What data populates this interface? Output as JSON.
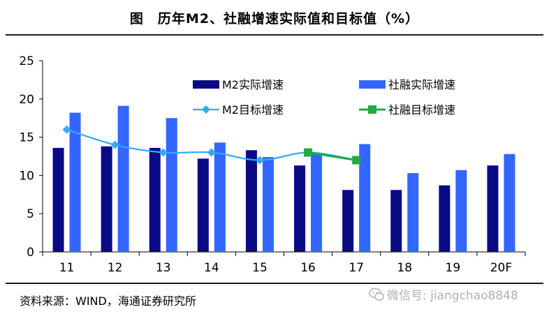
{
  "title": "图　历年M2、社融增速实际值和目标值（%）",
  "source": "资料来源：WIND，海通证券研究所",
  "watermark": "微信号: jiangchao8848",
  "colors": {
    "m2_actual": "#0a0a82",
    "sf_actual": "#3366ff",
    "m2_target": "#33aaff",
    "sf_target": "#22aa44"
  },
  "chart_data": {
    "type": "bar",
    "categories": [
      "11",
      "12",
      "13",
      "14",
      "15",
      "16",
      "17",
      "18",
      "19",
      "20F"
    ],
    "ylim": [
      0,
      25
    ],
    "yticks": [
      0,
      5,
      10,
      15,
      20,
      25
    ],
    "legend_position": "top-right",
    "series": [
      {
        "name": "M2实际增速",
        "kind": "bar",
        "colorKey": "m2_actual",
        "values": [
          13.6,
          13.8,
          13.6,
          12.2,
          13.3,
          11.3,
          8.1,
          8.1,
          8.7,
          11.3
        ]
      },
      {
        "name": "社融实际增速",
        "kind": "bar",
        "colorKey": "sf_actual",
        "values": [
          18.2,
          19.1,
          17.5,
          14.3,
          12.4,
          12.8,
          14.1,
          10.3,
          10.7,
          12.8
        ]
      },
      {
        "name": "M2目标增速",
        "kind": "line",
        "colorKey": "m2_target",
        "marker": "diamond",
        "values": [
          16,
          14,
          13,
          13,
          12,
          13,
          12,
          null,
          null,
          null
        ]
      },
      {
        "name": "社融目标增速",
        "kind": "line",
        "colorKey": "sf_target",
        "marker": "square",
        "values": [
          null,
          null,
          null,
          null,
          null,
          13,
          12,
          null,
          null,
          null
        ]
      }
    ]
  }
}
